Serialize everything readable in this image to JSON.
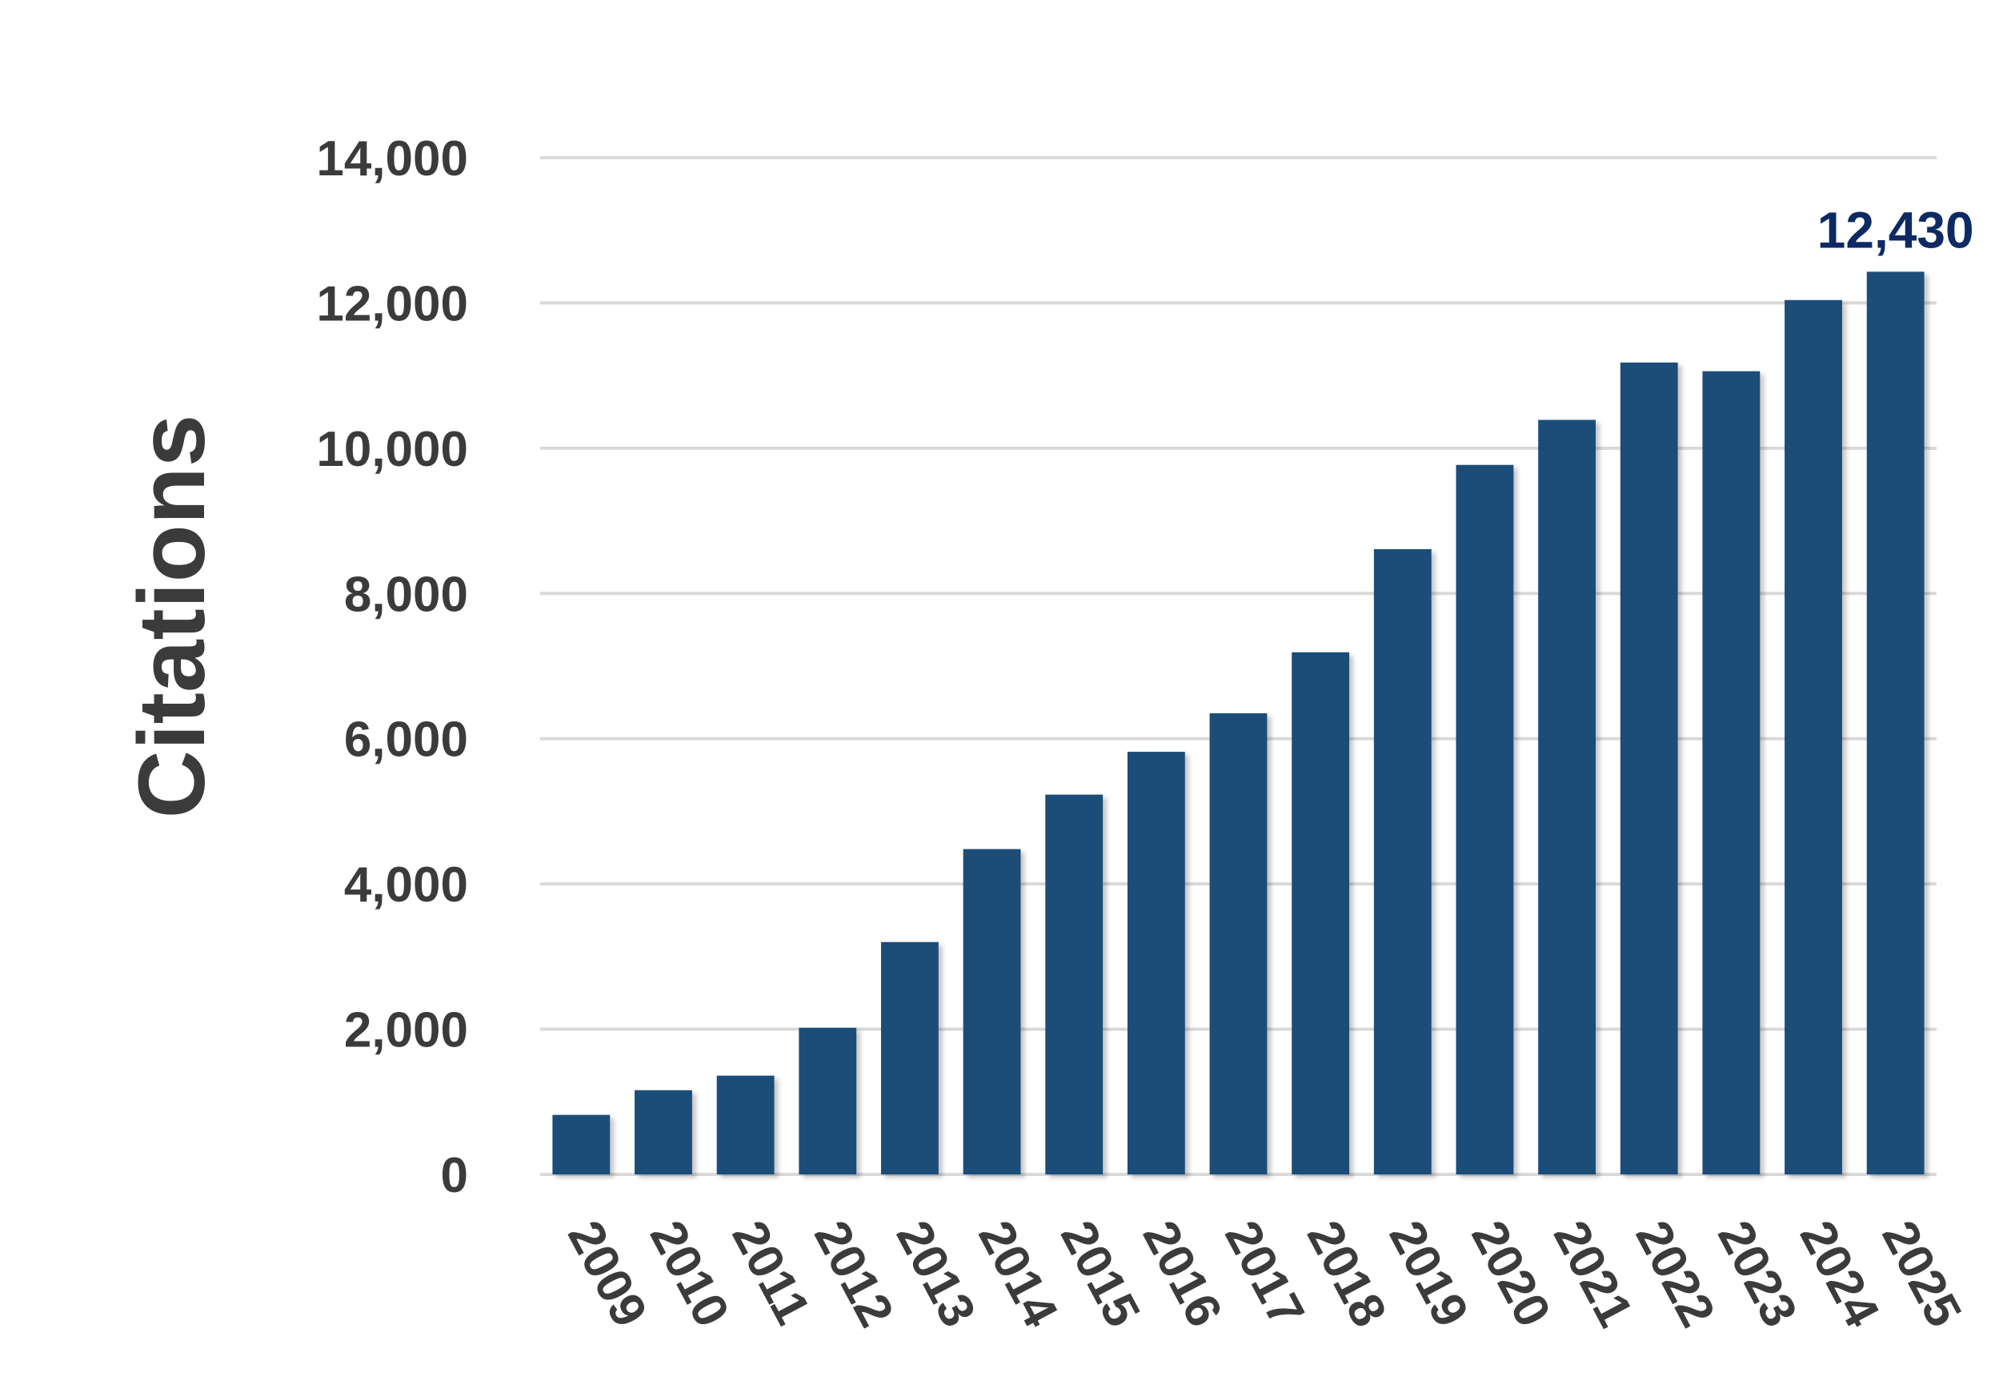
{
  "chart_data": {
    "type": "bar",
    "title": "",
    "xlabel": "",
    "ylabel": "Citations",
    "ylim": [
      0,
      14000
    ],
    "yticks": [
      0,
      2000,
      4000,
      6000,
      8000,
      10000,
      12000,
      14000
    ],
    "ytick_labels": [
      "0",
      "2,000",
      "4,000",
      "6,000",
      "8,000",
      "10,000",
      "12,000",
      "14,000"
    ],
    "grid": true,
    "legend": "none",
    "categories": [
      "2009",
      "2010",
      "2011",
      "2012",
      "2013",
      "2014",
      "2015",
      "2016",
      "2017",
      "2018",
      "2019",
      "2020",
      "2021",
      "2022",
      "2023",
      "2024",
      "2025"
    ],
    "values": [
      820,
      1160,
      1360,
      2020,
      3200,
      4480,
      5230,
      5820,
      6350,
      7190,
      8610,
      9770,
      10390,
      11180,
      11060,
      12040,
      12430
    ],
    "annotations": [
      {
        "category": "2025",
        "text": "12,430"
      }
    ],
    "colors": {
      "bar": "#1f4e79",
      "annotation": "#0d2a63"
    }
  }
}
